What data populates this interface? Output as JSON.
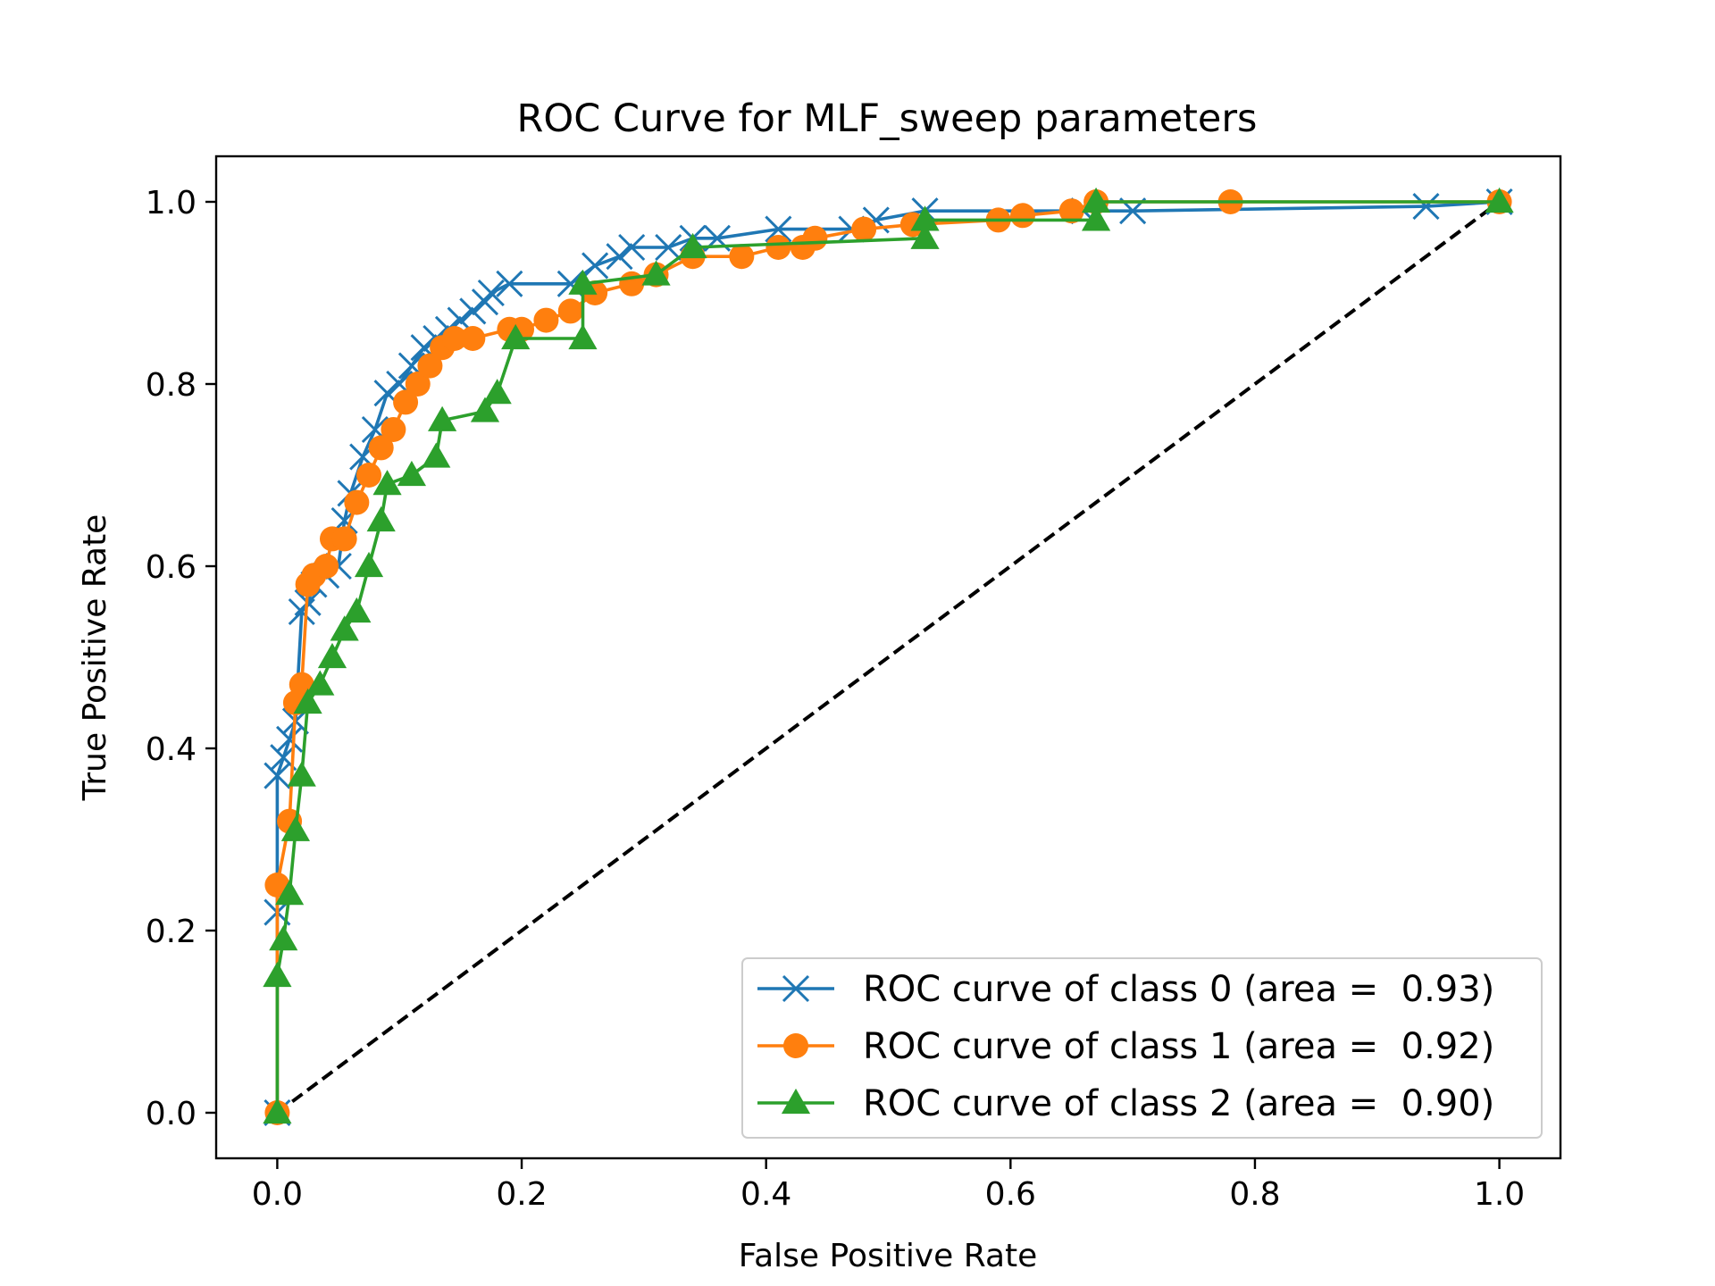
{
  "chart_data": {
    "type": "line",
    "title": "ROC Curve for MLF_sweep parameters",
    "xlabel": "False Positive Rate",
    "ylabel": "True Positive Rate",
    "xlim": [
      -0.05,
      1.05
    ],
    "ylim": [
      -0.05,
      1.05
    ],
    "xticks": [
      0.0,
      0.2,
      0.4,
      0.6,
      0.8,
      1.0
    ],
    "yticks": [
      0.0,
      0.2,
      0.4,
      0.6,
      0.8,
      1.0
    ],
    "xtick_labels": [
      "0.0",
      "0.2",
      "0.4",
      "0.6",
      "0.8",
      "1.0"
    ],
    "ytick_labels": [
      "0.0",
      "0.2",
      "0.4",
      "0.6",
      "0.8",
      "1.0"
    ],
    "grid": false,
    "legend_position": "lower-right",
    "series": [
      {
        "name": "ROC curve of class 0 (area =  0.93)",
        "color": "#1f77b4",
        "marker": "x",
        "x": [
          0.0,
          0.0,
          0.0,
          0.005,
          0.01,
          0.015,
          0.02,
          0.025,
          0.03,
          0.04,
          0.05,
          0.055,
          0.06,
          0.07,
          0.08,
          0.09,
          0.1,
          0.11,
          0.12,
          0.13,
          0.14,
          0.15,
          0.16,
          0.17,
          0.175,
          0.19,
          0.24,
          0.26,
          0.28,
          0.29,
          0.32,
          0.34,
          0.36,
          0.41,
          0.47,
          0.49,
          0.53,
          0.66,
          0.7,
          0.94,
          1.0
        ],
        "y": [
          0.0,
          0.22,
          0.37,
          0.39,
          0.41,
          0.43,
          0.55,
          0.56,
          0.58,
          0.59,
          0.6,
          0.65,
          0.68,
          0.72,
          0.75,
          0.79,
          0.8,
          0.82,
          0.84,
          0.85,
          0.86,
          0.87,
          0.88,
          0.89,
          0.9,
          0.91,
          0.91,
          0.93,
          0.94,
          0.95,
          0.95,
          0.96,
          0.96,
          0.97,
          0.97,
          0.98,
          0.99,
          0.99,
          0.99,
          0.995,
          1.0
        ]
      },
      {
        "name": "ROC curve of class 1 (area =  0.92)",
        "color": "#ff7f0e",
        "marker": "o",
        "x": [
          0.0,
          0.0,
          0.01,
          0.015,
          0.02,
          0.025,
          0.03,
          0.04,
          0.045,
          0.055,
          0.065,
          0.075,
          0.085,
          0.095,
          0.105,
          0.115,
          0.125,
          0.135,
          0.145,
          0.16,
          0.19,
          0.2,
          0.22,
          0.24,
          0.26,
          0.29,
          0.31,
          0.34,
          0.38,
          0.41,
          0.43,
          0.44,
          0.48,
          0.52,
          0.59,
          0.61,
          0.65,
          0.67,
          0.78,
          1.0
        ],
        "y": [
          0.0,
          0.25,
          0.32,
          0.45,
          0.47,
          0.58,
          0.59,
          0.6,
          0.63,
          0.63,
          0.67,
          0.7,
          0.73,
          0.75,
          0.78,
          0.8,
          0.82,
          0.84,
          0.85,
          0.85,
          0.86,
          0.86,
          0.87,
          0.88,
          0.9,
          0.91,
          0.92,
          0.94,
          0.94,
          0.95,
          0.95,
          0.96,
          0.97,
          0.975,
          0.98,
          0.985,
          0.99,
          1.0,
          1.0,
          1.0
        ]
      },
      {
        "name": "ROC curve of class 2 (area =  0.90)",
        "color": "#2ca02c",
        "marker": "^",
        "x": [
          0.0,
          0.0,
          0.005,
          0.01,
          0.015,
          0.02,
          0.025,
          0.035,
          0.045,
          0.055,
          0.065,
          0.075,
          0.085,
          0.09,
          0.11,
          0.13,
          0.135,
          0.17,
          0.18,
          0.195,
          0.25,
          0.25,
          0.31,
          0.34,
          0.53,
          0.53,
          0.67,
          0.67,
          1.0
        ],
        "y": [
          0.0,
          0.15,
          0.19,
          0.24,
          0.31,
          0.37,
          0.45,
          0.47,
          0.5,
          0.53,
          0.55,
          0.6,
          0.65,
          0.69,
          0.7,
          0.72,
          0.76,
          0.77,
          0.79,
          0.85,
          0.85,
          0.91,
          0.92,
          0.95,
          0.96,
          0.98,
          0.98,
          1.0,
          1.0
        ]
      }
    ],
    "reference_line": {
      "x": [
        0.0,
        1.0
      ],
      "y": [
        0.0,
        1.0
      ],
      "color": "#000000",
      "style": "dashed"
    }
  }
}
